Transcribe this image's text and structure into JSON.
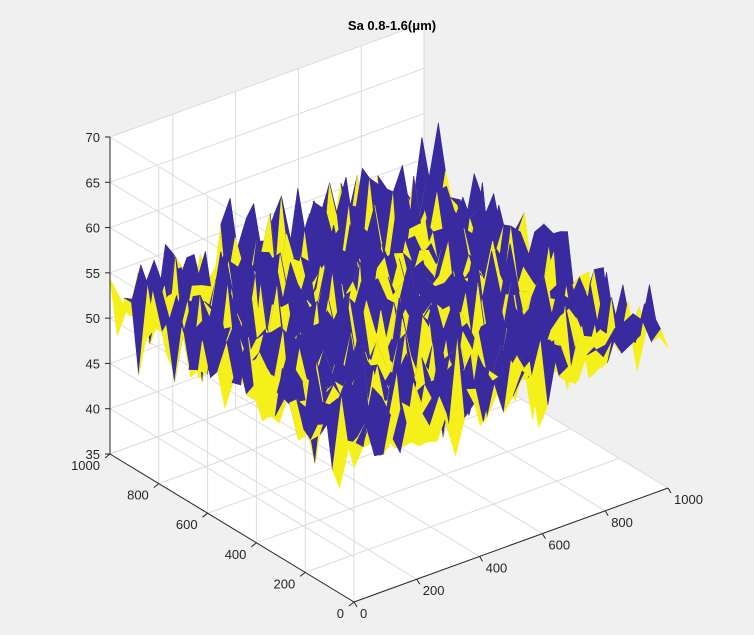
{
  "figure": {
    "title": "Sa 0.8-1.6(μm)",
    "background_color": "#f0f0f0",
    "axes_color": "#ffffff"
  },
  "chart_data": {
    "type": "surface",
    "title": "Sa 0.8-1.6(μm)",
    "xlabel": "",
    "ylabel": "",
    "zlabel": "",
    "xlim": [
      0,
      1000
    ],
    "ylim": [
      0,
      1000
    ],
    "zlim": [
      35,
      70
    ],
    "x_ticks": [
      "0",
      "200",
      "400",
      "600",
      "800",
      "1000"
    ],
    "y_ticks": [
      "0",
      "200",
      "400",
      "600",
      "800",
      "1000"
    ],
    "z_ticks": [
      "35",
      "40",
      "45",
      "50",
      "55",
      "60",
      "65",
      "70"
    ],
    "grid": true,
    "view": "3d-isometric",
    "surface_mean_height": 52,
    "surface_height_range": [
      37,
      65
    ],
    "plane_height": 52,
    "colors": {
      "surface": "#3a2aa0",
      "plane": "#f5f01a",
      "grid": "#dcdcdc",
      "axis": "#262626"
    }
  }
}
